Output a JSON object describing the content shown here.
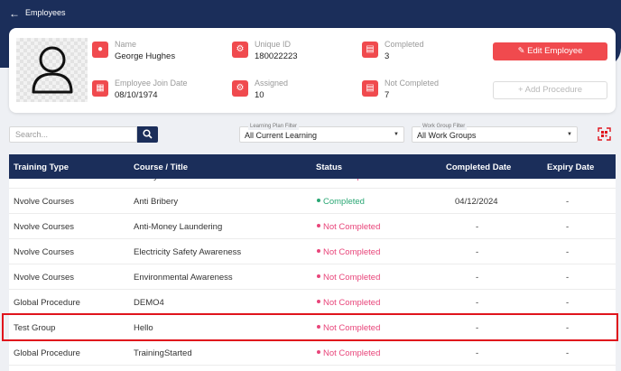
{
  "header": {
    "back_icon": "arrow-left-icon",
    "title": "Employees"
  },
  "profile": {
    "name_label": "Name",
    "name_value": "George Hughes",
    "uid_label": "Unique ID",
    "uid_value": "180022223",
    "completed_label": "Completed",
    "completed_value": "3",
    "join_label": "Employee Join Date",
    "join_value": "08/10/1974",
    "assigned_label": "Assigned",
    "assigned_value": "10",
    "notcompleted_label": "Not Completed",
    "notcompleted_value": "7",
    "edit_button": "✎ Edit Employee",
    "add_button": "+ Add Procedure"
  },
  "filters": {
    "search_placeholder": "Search...",
    "learning_label": "Learning Plan Filter",
    "learning_value": "All Current Learning",
    "workgroup_label": "Work Group Filter",
    "workgroup_value": "All Work Groups"
  },
  "table": {
    "headers": [
      "Training Type",
      "Course / Title",
      "Status",
      "Completed Date",
      "Expiry Date"
    ],
    "partial_row": {
      "type": "Nvolve Courses",
      "title": "Safety",
      "status": "Not Completed"
    },
    "rows": [
      {
        "type": "Nvolve Courses",
        "title": "Anti Bribery",
        "status": "Completed",
        "completed": "04/12/2024",
        "expiry": "-"
      },
      {
        "type": "Nvolve Courses",
        "title": "Anti-Money Laundering",
        "status": "Not Completed",
        "completed": "-",
        "expiry": "-"
      },
      {
        "type": "Nvolve Courses",
        "title": "Electricity Safety Awareness",
        "status": "Not Completed",
        "completed": "-",
        "expiry": "-"
      },
      {
        "type": "Nvolve Courses",
        "title": "Environmental Awareness",
        "status": "Not Completed",
        "completed": "-",
        "expiry": "-"
      },
      {
        "type": "Global Procedure",
        "title": "DEMO4",
        "status": "Not Completed",
        "completed": "-",
        "expiry": "-"
      },
      {
        "type": "Test Group",
        "title": "Hello",
        "status": "Not Completed",
        "completed": "-",
        "expiry": "-"
      },
      {
        "type": "Global Procedure",
        "title": "TrainingStarted",
        "status": "Not Completed",
        "completed": "-",
        "expiry": "-"
      }
    ]
  },
  "colors": {
    "navy": "#1b2e5a",
    "accent_red": "#f04a4e",
    "completed_green": "#2aa774",
    "not_completed_pink": "#e8457a",
    "highlight_red": "#e0141c"
  }
}
